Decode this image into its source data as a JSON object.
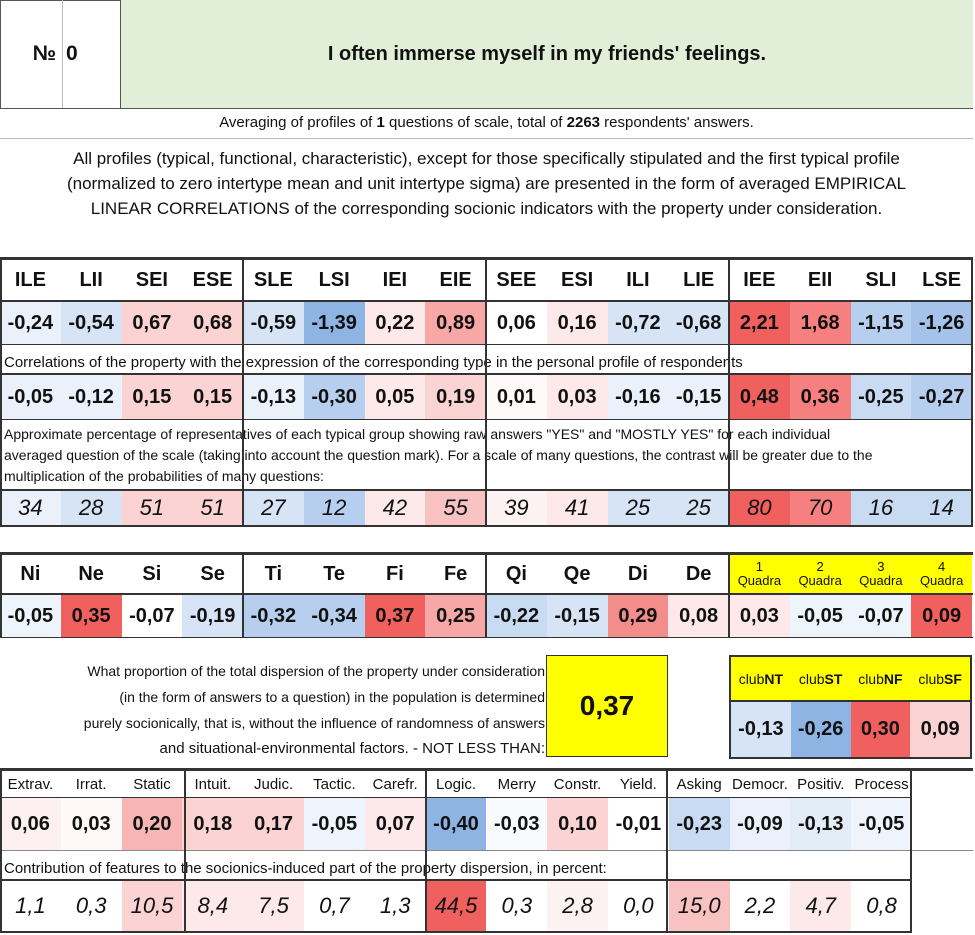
{
  "header": {
    "no_label": "№",
    "number": "0",
    "question": "I often immerse myself in my friends' feelings."
  },
  "averaging": {
    "prefix": "Averaging of profiles of ",
    "count": "1",
    "middle": " questions of scale, total of ",
    "total": "2263",
    "suffix": " respondents' answers."
  },
  "description": [
    "All profiles (typical, functional, characteristic), except for those specifically stipulated and the first typical profile",
    "(normalized to zero intertype mean and unit intertype sigma) are presented in the form of averaged EMPIRICAL",
    "LINEAR CORRELATIONS of the corresponding socionic indicators with the property under consideration."
  ],
  "types": {
    "headers": [
      "ILE",
      "LII",
      "SEI",
      "ESE",
      "SLE",
      "LSI",
      "IEI",
      "EIE",
      "SEE",
      "ESI",
      "ILI",
      "LIE",
      "IEE",
      "EII",
      "SLI",
      "LSE"
    ],
    "profile": [
      "-0,24",
      "-0,54",
      "0,67",
      "0,68",
      "-0,59",
      "-1,39",
      "0,22",
      "0,89",
      "0,06",
      "0,16",
      "-0,72",
      "-0,68",
      "2,21",
      "1,68",
      "-1,15",
      "-1,26"
    ],
    "correlation_note": "Correlations of the property with the expression of the corresponding type in the personal profile of respondents",
    "correlations": [
      "-0,05",
      "-0,12",
      "0,15",
      "0,15",
      "-0,13",
      "-0,30",
      "0,05",
      "0,19",
      "0,01",
      "0,03",
      "-0,16",
      "-0,15",
      "0,48",
      "0,36",
      "-0,25",
      "-0,27"
    ],
    "percentage_note": [
      "Approximate percentage of representatives of each typical group showing raw answers \"YES\" and \"MOSTLY YES\" for each individual",
      "averaged question of the scale (taking into account the question mark). For a scale of many questions, the contrast will be greater due to the",
      "multiplication of the probabilities of many questions:"
    ],
    "percentages": [
      "34",
      "28",
      "51",
      "51",
      "27",
      "12",
      "42",
      "55",
      "39",
      "41",
      "25",
      "25",
      "80",
      "70",
      "16",
      "14"
    ]
  },
  "functions": {
    "headers": [
      "Ni",
      "Ne",
      "Si",
      "Se",
      "Ti",
      "Te",
      "Fi",
      "Fe",
      "Qi",
      "Qe",
      "Di",
      "De"
    ],
    "values": [
      "-0,05",
      "0,35",
      "-0,07",
      "-0,19",
      "-0,32",
      "-0,34",
      "0,37",
      "0,25",
      "-0,22",
      "-0,15",
      "0,29",
      "0,08"
    ],
    "quadra_headers": [
      [
        "1",
        "Quadra"
      ],
      [
        "2",
        "Quadra"
      ],
      [
        "3",
        "Quadra"
      ],
      [
        "4",
        "Quadra"
      ]
    ],
    "quadra_values": [
      "0,03",
      "-0,05",
      "-0,07",
      "0,09"
    ]
  },
  "dispersion": {
    "text": [
      "What proportion of the total dispersion of the property under consideration",
      "(in the form of answers to a question) in the population is determined",
      "purely socionically, that is, without the influence of randomness of answers",
      "and situational-environmental factors. - NOT LESS THAN:"
    ],
    "value": "0,37"
  },
  "clubs": {
    "prefix": "club",
    "names": [
      "NT",
      "ST",
      "NF",
      "SF"
    ],
    "values": [
      "-0,13",
      "-0,26",
      "0,30",
      "0,09"
    ]
  },
  "features": {
    "headers": [
      "Extrav.",
      "Irrat.",
      "Static",
      "Intuit.",
      "Judic.",
      "Tactic.",
      "Carefr.",
      "Logic.",
      "Merry",
      "Constr.",
      "Yield.",
      "Asking",
      "Democr.",
      "Positiv.",
      "Process"
    ],
    "values": [
      "0,06",
      "0,03",
      "0,20",
      "0,18",
      "0,17",
      "-0,05",
      "0,07",
      "-0,40",
      "-0,03",
      "0,10",
      "-0,01",
      "-0,23",
      "-0,09",
      "-0,13",
      "-0,05"
    ],
    "contribution_note": "Contribution of features to the socionics-induced part of the property dispersion, in percent:",
    "contributions": [
      "1,1",
      "0,3",
      "10,5",
      "8,4",
      "7,5",
      "0,7",
      "1,3",
      "44,5",
      "0,3",
      "2,8",
      "0,0",
      "15,0",
      "2,2",
      "4,7",
      "0,8"
    ]
  },
  "colors": {
    "header_bg": "#e1efd8",
    "yellow": "#ffff00",
    "red_strong": "#f0605e",
    "red_mid": "#f7a7a6",
    "red_light": "#fbd3d3",
    "red_faint": "#fde9e9",
    "blue_strong": "#8eb4e3",
    "blue_mid": "#b7cfee",
    "blue_light": "#d6e4f5",
    "blue_faint": "#eaf1fa"
  },
  "cell_colors": {
    "types_profile": [
      "#eaf1fa",
      "#d6e4f5",
      "#fbd3d3",
      "#fbd3d3",
      "#d6e4f5",
      "#8eb4e3",
      "#fde9e9",
      "#f7a7a6",
      "#ffffff",
      "#fde9e9",
      "#d6e4f5",
      "#d6e4f5",
      "#f0605e",
      "#f5807f",
      "#b7cfee",
      "#a5c2ea"
    ],
    "types_corr": [
      "#eaf1fa",
      "#eaf1fa",
      "#fbd3d3",
      "#fbd3d3",
      "#eaf1fa",
      "#b7cfee",
      "#fde9e9",
      "#fbd3d3",
      "#fffafa",
      "#fde9e9",
      "#eaf1fa",
      "#eaf1fa",
      "#f0605e",
      "#f5807f",
      "#c9dbf2",
      "#b7cfee"
    ],
    "types_pct": [
      "#eaf1fa",
      "#d6e4f5",
      "#fbd3d3",
      "#fbd3d3",
      "#d6e4f5",
      "#b7cfee",
      "#fde9e9",
      "#f7c2c1",
      "#fdf2f2",
      "#fde9e9",
      "#d6e4f5",
      "#d6e4f5",
      "#f0605e",
      "#f5807f",
      "#c9dbf2",
      "#c9dbf2"
    ],
    "func_values": [
      "#eef4fb",
      "#f0605e",
      "#ffffff",
      "#d6e4f5",
      "#b7cfee",
      "#b7cfee",
      "#f0605e",
      "#f7a7a6",
      "#c9dbf2",
      "#d6e4f5",
      "#f28d8c",
      "#fde9e9"
    ],
    "quadra_values": [
      "#fde9e9",
      "#eef4fb",
      "#eef4fb",
      "#f0605e"
    ],
    "club_values": [
      "#d6e4f5",
      "#8eb4e3",
      "#f0605e",
      "#fbd3d3"
    ],
    "feature_values": [
      "#fdf0f0",
      "#fff8f8",
      "#f7b5b4",
      "#fbd3d3",
      "#fbd3d3",
      "#eef4fb",
      "#fde9e9",
      "#8eb4e3",
      "#f8fafd",
      "#fbd3d3",
      "#ffffff",
      "#c9dbf2",
      "#eaf1fa",
      "#e3edf8",
      "#eef4fb"
    ],
    "contrib_values": [
      "#ffffff",
      "#ffffff",
      "#fbd3d3",
      "#fde9e9",
      "#fde9e9",
      "#ffffff",
      "#ffffff",
      "#f0605e",
      "#ffffff",
      "#fdf2f2",
      "#ffffff",
      "#f7c2c1",
      "#ffffff",
      "#fde9e9",
      "#ffffff"
    ]
  }
}
